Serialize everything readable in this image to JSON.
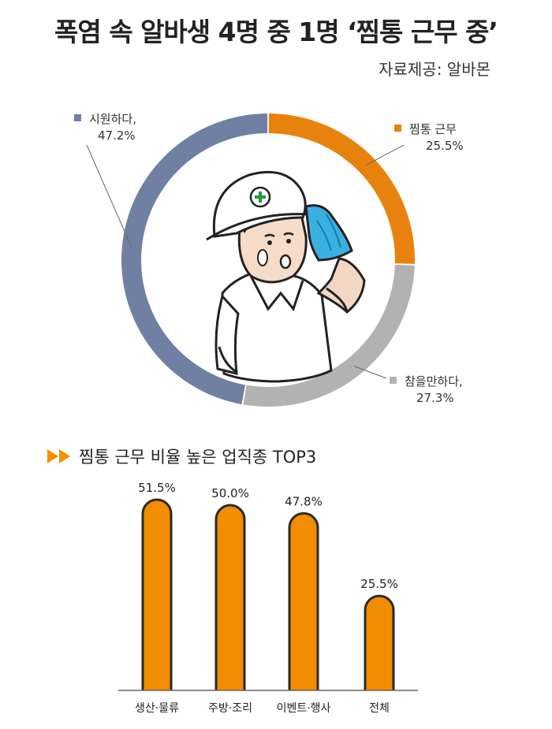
{
  "title": "폭염 속 알바생 4명 중 1명 ‘찜통 근무 중’",
  "source": "자료제공: 알바몬",
  "colors": {
    "orange": "#e8820e",
    "gray": "#b2b2b2",
    "blue": "#7080a3",
    "bar": "#f28c00",
    "bar_outline": "#2a2a2a",
    "title_arrow": "#f29200"
  },
  "section_title": "찜통 근무 비율 높은 업직종 TOP3",
  "chart_data": [
    {
      "type": "pie",
      "donut": true,
      "slices": [
        {
          "label": "찜통 근무",
          "value_label": "25.5%",
          "value": 25.5,
          "color": "#e8820e"
        },
        {
          "label": "참을만하다,",
          "value_label": "27.3%",
          "value": 27.3,
          "color": "#b2b2b2"
        },
        {
          "label": "시원하다,",
          "value_label": "47.2%",
          "value": 47.2,
          "color": "#7080a3"
        }
      ]
    },
    {
      "type": "bar",
      "categories": [
        "생산·물류",
        "주방·조리",
        "이벤트·행사",
        "전체"
      ],
      "values": [
        51.5,
        50.0,
        47.8,
        25.5
      ],
      "value_labels": [
        "51.5%",
        "50.0%",
        "47.8%",
        "25.5%"
      ],
      "ylim": [
        0,
        55
      ]
    }
  ]
}
